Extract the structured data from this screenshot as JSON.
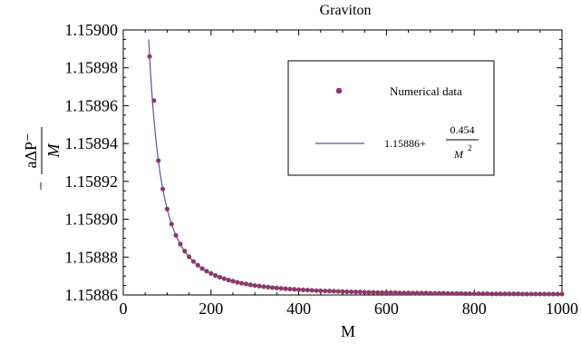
{
  "chart_data": {
    "type": "scatter",
    "title": "Graviton",
    "xlabel": "M",
    "ylabel": {
      "numerator": "aΔP⁻",
      "denominator": "M",
      "sign": "−"
    },
    "xlim": [
      0,
      1000
    ],
    "ylim": [
      1.15886,
      1.159
    ],
    "x_ticks": [
      "0",
      "200",
      "400",
      "600",
      "800",
      "1000"
    ],
    "y_ticks": [
      "1.15886",
      "1.15888",
      "1.15890",
      "1.15892",
      "1.15894",
      "1.15896",
      "1.15898",
      "1.15900"
    ],
    "grid": false,
    "legend_position": "top-right",
    "colors": {
      "points": "#8b3a6b",
      "fit_line": "#5553a0",
      "axes": "#000000"
    },
    "series": [
      {
        "name": "Numerical data",
        "kind": "scatter",
        "x": [
          60,
          70,
          80,
          90,
          100,
          110,
          120,
          130,
          140,
          150,
          160,
          170,
          180,
          190,
          200,
          210,
          220,
          230,
          240,
          250,
          260,
          270,
          280,
          290,
          300,
          310,
          320,
          330,
          340,
          350,
          360,
          370,
          380,
          390,
          400,
          410,
          420,
          430,
          440,
          450,
          460,
          470,
          480,
          490,
          500,
          510,
          520,
          530,
          540,
          550,
          560,
          570,
          580,
          590,
          600,
          610,
          620,
          630,
          640,
          650,
          660,
          670,
          680,
          690,
          700,
          710,
          720,
          730,
          740,
          750,
          760,
          770,
          780,
          790,
          800,
          810,
          820,
          830,
          840,
          850,
          860,
          870,
          880,
          890,
          900,
          910,
          920,
          930,
          940,
          950,
          960,
          970,
          980,
          990,
          1000
        ],
        "y": [
          1.158986,
          1.1589627,
          1.158931,
          1.158916,
          1.1589054,
          1.1588975,
          1.1588915,
          1.1588869,
          1.1588832,
          1.1588802,
          1.1588777,
          1.1588757,
          1.158874,
          1.1588726,
          1.1588714,
          1.1588703,
          1.1588694,
          1.1588686,
          1.1588679,
          1.1588673,
          1.1588667,
          1.1588662,
          1.1588658,
          1.1588654,
          1.158865,
          1.1588647,
          1.1588644,
          1.1588642,
          1.1588639,
          1.1588637,
          1.1588635,
          1.1588633,
          1.1588631,
          1.158863,
          1.1588628,
          1.1588627,
          1.1588626,
          1.1588625,
          1.1588623,
          1.1588622,
          1.1588621,
          1.1588621,
          1.158862,
          1.1588619,
          1.1588618,
          1.1588617,
          1.1588617,
          1.1588616,
          1.1588616,
          1.1588615,
          1.1588614,
          1.1588614,
          1.1588613,
          1.1588613,
          1.1588613,
          1.1588612,
          1.1588612,
          1.1588611,
          1.1588611,
          1.1588611,
          1.158861,
          1.158861,
          1.158861,
          1.158861,
          1.1588609,
          1.1588609,
          1.1588609,
          1.1588609,
          1.1588608,
          1.1588608,
          1.1588608,
          1.1588608,
          1.1588607,
          1.1588607,
          1.1588607,
          1.1588607,
          1.1588607,
          1.1588607,
          1.1588606,
          1.1588606,
          1.1588606,
          1.1588606,
          1.1588606,
          1.1588606,
          1.1588606,
          1.1588605,
          1.1588605,
          1.1588605,
          1.1588605,
          1.1588605,
          1.1588605,
          1.1588605,
          1.1588605,
          1.1588605,
          1.1588605
        ]
      },
      {
        "name": "1.15886+0.454/M²",
        "kind": "line",
        "formula": {
          "constant": 1.15886,
          "coefficient": 0.454,
          "power": 2
        },
        "x_range": [
          58,
          1000
        ]
      }
    ],
    "legend": {
      "points_label": "Numerical data",
      "fit_prefix": "1.15886+",
      "fit_numerator": "0.454",
      "fit_denominator": "M",
      "fit_exponent": "2"
    }
  }
}
